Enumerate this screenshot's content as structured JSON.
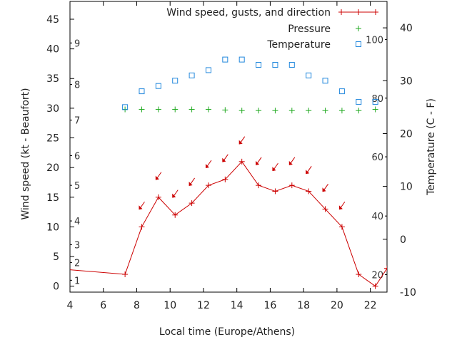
{
  "chart_data": {
    "type": "line",
    "xlabel": "Local time (Europe/Athens)",
    "ylabel": "Wind speed (kt - Beaufort)",
    "y2label": "Temperature (C - F)",
    "xlim": [
      4,
      23
    ],
    "ylim": [
      -1,
      48
    ],
    "y2lim": [
      -10,
      45
    ],
    "x_ticks": [
      4,
      6,
      8,
      10,
      12,
      14,
      16,
      18,
      20,
      22
    ],
    "y_ticks": [
      0,
      5,
      10,
      15,
      20,
      25,
      30,
      35,
      40,
      45
    ],
    "y2_ticks": [
      -10,
      0,
      10,
      20,
      30,
      40
    ],
    "beaufort_labels": [
      {
        "label": "1",
        "y": 1
      },
      {
        "label": "2",
        "y": 4
      },
      {
        "label": "3",
        "y": 7
      },
      {
        "label": "4",
        "y": 11
      },
      {
        "label": "5",
        "y": 17
      },
      {
        "label": "6",
        "y": 22
      },
      {
        "label": "7",
        "y": 28
      },
      {
        "label": "8",
        "y": 34
      },
      {
        "label": "9",
        "y": 41
      }
    ],
    "fahrenheit_labels": [
      {
        "label": "20",
        "y2": -6.7
      },
      {
        "label": "40",
        "y2": 4.4
      },
      {
        "label": "60",
        "y2": 15.6
      },
      {
        "label": "80",
        "y2": 26.7
      },
      {
        "label": "100",
        "y2": 37.8
      }
    ],
    "grid": false,
    "legend_position": "top-right",
    "colors": {
      "wind": "#cc0000",
      "pressure": "#22aa22",
      "temperature": "#2288dd",
      "axis": "#000000"
    },
    "series": [
      {
        "name": "Wind speed, gusts, and direction",
        "style": "line-plus",
        "x": [
          3,
          7.3,
          8.3,
          9.3,
          10.3,
          11.3,
          12.3,
          13.3,
          14.3,
          15.3,
          16.3,
          17.3,
          18.3,
          19.3,
          20.3,
          21.3,
          22.3,
          23
        ],
        "y": [
          3,
          2,
          10,
          15,
          12,
          14,
          17,
          18,
          21,
          17,
          16,
          17,
          16,
          13,
          10,
          2,
          0,
          3
        ],
        "gust_arrows": [
          {
            "x": 8.3,
            "y": 13.5
          },
          {
            "x": 9.3,
            "y": 18.5
          },
          {
            "x": 10.3,
            "y": 15.5
          },
          {
            "x": 11.3,
            "y": 17.5
          },
          {
            "x": 12.3,
            "y": 20.5
          },
          {
            "x": 13.3,
            "y": 21.5
          },
          {
            "x": 14.3,
            "y": 24.5
          },
          {
            "x": 15.3,
            "y": 21
          },
          {
            "x": 16.3,
            "y": 20
          },
          {
            "x": 17.3,
            "y": 21
          },
          {
            "x": 18.3,
            "y": 19.5
          },
          {
            "x": 19.3,
            "y": 16.5
          },
          {
            "x": 20.3,
            "y": 13.5
          }
        ]
      },
      {
        "name": "Pressure",
        "style": "plus",
        "x": [
          7.3,
          8.3,
          9.3,
          10.3,
          11.3,
          12.3,
          13.3,
          14.3,
          15.3,
          16.3,
          17.3,
          18.3,
          19.3,
          20.3,
          21.3,
          22.3
        ],
        "y": [
          29.8,
          29.8,
          29.8,
          29.8,
          29.8,
          29.8,
          29.7,
          29.6,
          29.6,
          29.6,
          29.6,
          29.6,
          29.6,
          29.6,
          29.6,
          29.8
        ]
      },
      {
        "name": "Temperature",
        "style": "square",
        "axis": "y2",
        "x": [
          7.3,
          8.3,
          9.3,
          10.3,
          11.3,
          12.3,
          13.3,
          14.3,
          15.3,
          16.3,
          17.3,
          18.3,
          19.3,
          20.3,
          21.3,
          22.3
        ],
        "y": [
          25,
          28,
          29,
          30,
          31,
          32,
          34,
          34,
          33,
          33,
          33,
          31,
          30,
          28,
          26,
          26
        ]
      }
    ]
  }
}
